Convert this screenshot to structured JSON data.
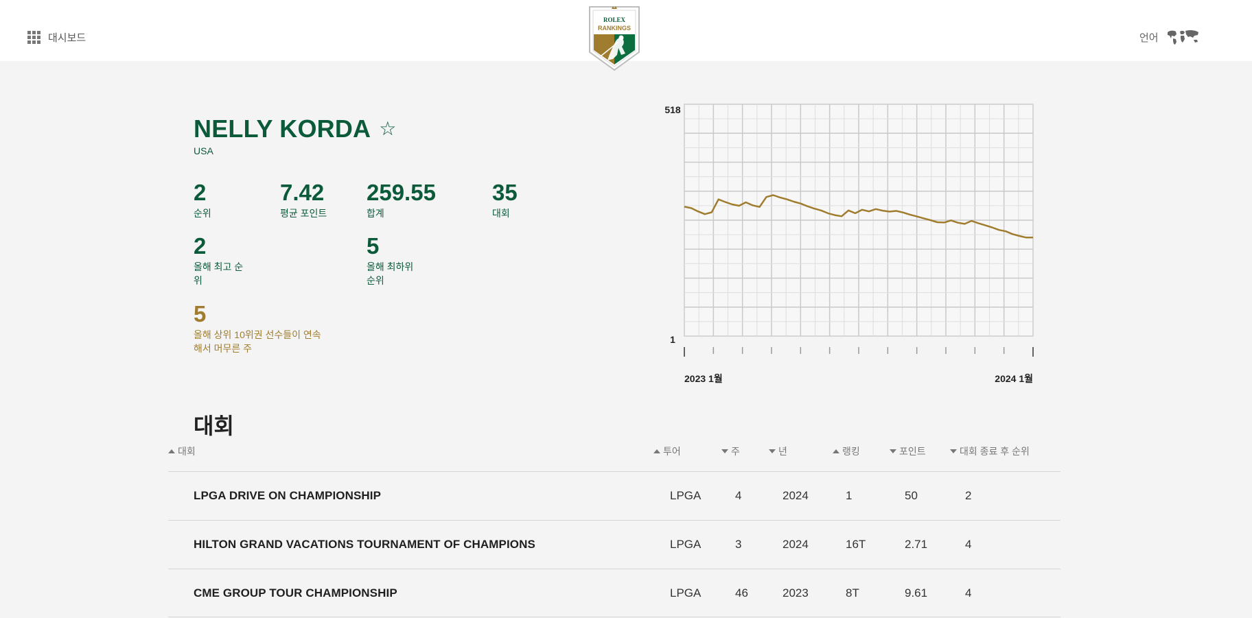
{
  "header": {
    "dashboard_label": "대시보드",
    "language_label": "언어",
    "logo": {
      "crest_text": "ROLEX",
      "wordmark": "RANKINGS"
    }
  },
  "player": {
    "name": "NELLY KORDA",
    "favorite_icon": "☆",
    "country": "USA"
  },
  "stats": {
    "rank": {
      "value": "2",
      "label": "순위"
    },
    "avg_points": {
      "value": "7.42",
      "label": "평균 포인트"
    },
    "total": {
      "value": "259.55",
      "label": "합계"
    },
    "events": {
      "value": "35",
      "label": "대회"
    },
    "best_rank": {
      "value": "2",
      "label_line1": "올해 최고 순",
      "label_line2": "위"
    },
    "worst_rank": {
      "value": "5",
      "label_line1": "올해 최하위",
      "label_line2": "순위"
    },
    "top10_weeks": {
      "value": "5",
      "label_line1": "올해 상위 10위권 선수들이 연속",
      "label_line2": "해서 머무른 주"
    }
  },
  "chart_data": {
    "type": "line",
    "y_top_label": "518",
    "y_bottom_label": "1",
    "x_start_label": "2023 1월",
    "x_end_label": "2024 1월",
    "ylim": [
      1,
      518
    ],
    "grid": true,
    "line_color": "#a07d2e",
    "values": [
      0.558,
      0.552,
      0.538,
      0.526,
      0.534,
      0.59,
      0.578,
      0.568,
      0.562,
      0.577,
      0.564,
      0.557,
      0.6,
      0.608,
      0.598,
      0.59,
      0.58,
      0.572,
      0.56,
      0.55,
      0.542,
      0.53,
      0.522,
      0.517,
      0.542,
      0.53,
      0.545,
      0.538,
      0.548,
      0.541,
      0.537,
      0.54,
      0.533,
      0.524,
      0.516,
      0.508,
      0.5,
      0.491,
      0.49,
      0.499,
      0.489,
      0.484,
      0.497,
      0.487,
      0.478,
      0.469,
      0.458,
      0.452,
      0.44,
      0.432,
      0.425,
      0.425
    ]
  },
  "events_section": {
    "title": "대회",
    "columns": [
      {
        "label": "대회",
        "sort": "up"
      },
      {
        "label": "투어",
        "sort": "up"
      },
      {
        "label": "주",
        "sort": "down"
      },
      {
        "label": "년",
        "sort": "down"
      },
      {
        "label": "랭킹",
        "sort": "up"
      },
      {
        "label": "포인트",
        "sort": "down"
      },
      {
        "label": "대회 종료 후 순위",
        "sort": "down"
      }
    ],
    "rows": [
      [
        "LPGA DRIVE ON CHAMPIONSHIP",
        "LPGA",
        "4",
        "2024",
        "1",
        "50",
        "2"
      ],
      [
        "HILTON GRAND VACATIONS TOURNAMENT OF CHAMPIONS",
        "LPGA",
        "3",
        "2024",
        "16T",
        "2.71",
        "4"
      ],
      [
        "CME GROUP TOUR CHAMPIONSHIP",
        "LPGA",
        "46",
        "2023",
        "8T",
        "9.61",
        "4"
      ]
    ]
  }
}
